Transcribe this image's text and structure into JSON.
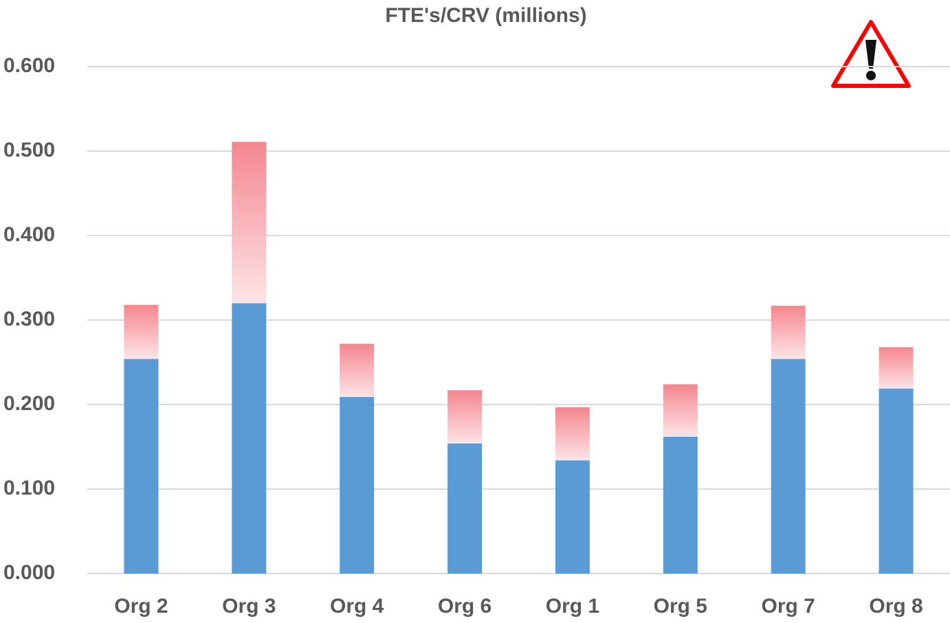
{
  "chart_data": {
    "type": "stacked_bar",
    "title": "FTE's/CRV (millions)",
    "categories": [
      "Org 2",
      "Org 3",
      "Org 4",
      "Org 6",
      "Org 1",
      "Org 5",
      "Org 7",
      "Org 8"
    ],
    "series": [
      {
        "color": "#5b9bd5",
        "values": [
          0.254,
          0.32,
          0.209,
          0.154,
          0.134,
          0.162,
          0.254,
          0.219
        ]
      },
      {
        "color": "#f4868f",
        "values": [
          0.064,
          0.191,
          0.063,
          0.063,
          0.063,
          0.062,
          0.063,
          0.049
        ]
      }
    ],
    "ylim": [
      0,
      0.6
    ],
    "yticks": [
      {
        "value": 0,
        "label": "0.000"
      },
      {
        "value": 0.1,
        "label": "0.100"
      },
      {
        "value": 0.2,
        "label": "0.200"
      },
      {
        "value": 0.3,
        "label": "0.300"
      },
      {
        "value": 0.4,
        "label": "0.400"
      },
      {
        "value": 0.5,
        "label": "0.500"
      },
      {
        "value": 0.6,
        "label": "0.600"
      }
    ],
    "grid": true
  }
}
